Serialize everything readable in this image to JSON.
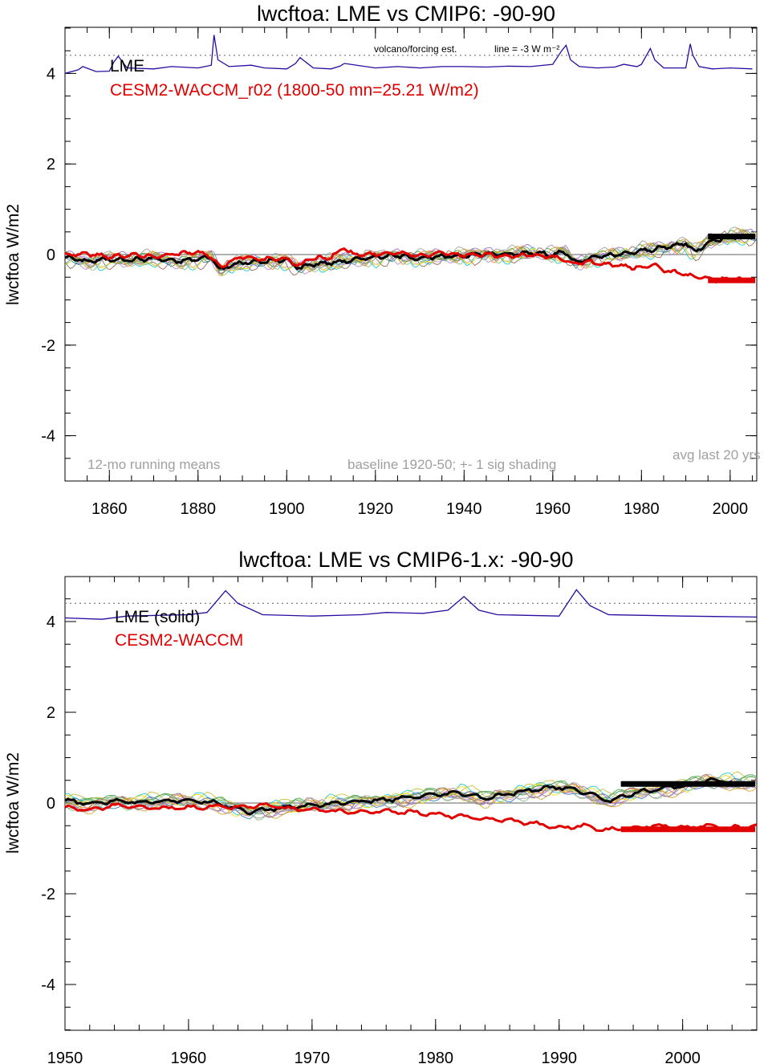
{
  "chart_data": [
    {
      "type": "line",
      "title": "lwcftoa: LME vs CMIP6: -90-90",
      "ylabel": "lwcftoa W/m2",
      "xlabel": "",
      "xlim": [
        1850,
        2006
      ],
      "ylim": [
        -5,
        5
      ],
      "x_ticks": [
        1860,
        1880,
        1900,
        1920,
        1940,
        1960,
        1980,
        2000
      ],
      "y_ticks": [
        4,
        2,
        0,
        -2,
        -4
      ],
      "y_tick_labels": [
        "4",
        "2",
        "0",
        "-2",
        "-4"
      ],
      "legend": [
        {
          "label": "LME",
          "color": "#000000"
        },
        {
          "label": "CESM2-WACCM_r02 (1800-50 mn=25.21 W/m2)",
          "color": "#e00000"
        }
      ],
      "annotations": {
        "volcano": "volcano/forcing est.",
        "volcano_line": "line = -3 W m⁻²",
        "running": "12-mo running means",
        "baseline": "baseline 1920-50; +- 1 sig shading",
        "avg": "avg last 20 yrs"
      },
      "reference_line_y": 4.4,
      "zero_line_y": 0,
      "volcano_series": {
        "name": "volcano/forcing est.",
        "color": "#2a0aa0",
        "x": [
          1850,
          1853,
          1854,
          1857,
          1860,
          1861,
          1862,
          1864,
          1870,
          1874,
          1880,
          1883,
          1883.6,
          1884.5,
          1887,
          1892,
          1895,
          1900,
          1902,
          1903,
          1906,
          1910,
          1912,
          1913,
          1920,
          1925,
          1930,
          1935,
          1940,
          1945,
          1950,
          1955,
          1960,
          1962,
          1963,
          1964,
          1966,
          1970,
          1974,
          1976,
          1979,
          1980,
          1982,
          1983,
          1985,
          1990,
          1991,
          1991.6,
          1993,
          1996,
          2000,
          2005
        ],
        "y": [
          4.0,
          4.08,
          4.15,
          4.04,
          4.05,
          4.25,
          4.38,
          4.12,
          4.1,
          4.15,
          4.12,
          4.18,
          4.85,
          4.3,
          4.15,
          4.18,
          4.12,
          4.1,
          4.22,
          4.35,
          4.12,
          4.1,
          4.16,
          4.22,
          4.12,
          4.15,
          4.12,
          4.15,
          4.15,
          4.14,
          4.16,
          4.15,
          4.2,
          4.5,
          4.62,
          4.3,
          4.15,
          4.12,
          4.14,
          4.2,
          4.15,
          4.2,
          4.55,
          4.3,
          4.12,
          4.12,
          4.65,
          4.4,
          4.15,
          4.1,
          4.12,
          4.1
        ]
      },
      "series": [
        {
          "name": "LME",
          "color": "#000000",
          "x": [
            1850,
            1855,
            1860,
            1865,
            1870,
            1875,
            1880,
            1883,
            1885,
            1887,
            1890,
            1895,
            1900,
            1903,
            1905,
            1910,
            1915,
            1920,
            1925,
            1930,
            1935,
            1940,
            1945,
            1950,
            1955,
            1960,
            1963,
            1965,
            1968,
            1970,
            1975,
            1980,
            1985,
            1990,
            1992,
            1995,
            2000,
            2005
          ],
          "y": [
            -0.05,
            -0.15,
            -0.1,
            -0.12,
            -0.08,
            -0.15,
            -0.1,
            -0.05,
            -0.35,
            -0.25,
            -0.18,
            -0.15,
            -0.12,
            -0.3,
            -0.22,
            -0.18,
            -0.12,
            -0.05,
            -0.02,
            -0.08,
            -0.05,
            -0.02,
            0.02,
            0.0,
            0.05,
            0.0,
            0.05,
            -0.18,
            -0.1,
            -0.05,
            0.0,
            0.08,
            0.15,
            0.25,
            0.05,
            0.28,
            0.4,
            0.4
          ]
        },
        {
          "name": "CESM2-WACCM_r02 (1800-50 mn=25.21 W/m2)",
          "color": "#e00000",
          "x": [
            1850,
            1855,
            1860,
            1865,
            1870,
            1875,
            1880,
            1883,
            1885,
            1887,
            1890,
            1895,
            1900,
            1903,
            1905,
            1910,
            1913,
            1915,
            1920,
            1925,
            1930,
            1935,
            1940,
            1945,
            1950,
            1955,
            1960,
            1963,
            1965,
            1968,
            1970,
            1975,
            1980,
            1983,
            1985,
            1988,
            1990,
            1993,
            1995,
            2000,
            2005
          ],
          "y": [
            0.0,
            0.02,
            -0.05,
            0.0,
            -0.05,
            0.02,
            0.05,
            -0.05,
            -0.3,
            -0.15,
            -0.05,
            -0.1,
            -0.1,
            -0.25,
            -0.1,
            -0.05,
            0.15,
            0.0,
            0.0,
            0.05,
            -0.02,
            0.05,
            -0.02,
            0.0,
            -0.05,
            0.0,
            -0.05,
            -0.15,
            -0.2,
            -0.15,
            -0.2,
            -0.25,
            -0.3,
            -0.2,
            -0.35,
            -0.4,
            -0.45,
            -0.5,
            -0.55,
            -0.55,
            -0.55
          ]
        }
      ],
      "avg_last_20": [
        {
          "name": "LME",
          "color": "#000000",
          "x": [
            1995,
            2006
          ],
          "y": 0.4
        },
        {
          "name": "CESM2-WACCM_r02",
          "color": "#e00000",
          "x": [
            1995,
            2006
          ],
          "y": -0.57
        }
      ]
    },
    {
      "type": "line",
      "title": "lwcftoa: LME vs CMIP6-1.x: -90-90",
      "ylabel": "lwcftoa W/m2",
      "xlabel": "",
      "xlim": [
        1950,
        2006
      ],
      "ylim": [
        -5,
        5
      ],
      "x_ticks": [
        1950,
        1960,
        1970,
        1980,
        1990,
        2000
      ],
      "y_ticks": [
        4,
        2,
        0,
        -2,
        -4
      ],
      "y_tick_labels": [
        "4",
        "2",
        "0",
        "-2",
        "-4"
      ],
      "legend": [
        {
          "label": "LME (solid)",
          "color": "#000000"
        },
        {
          "label": "CESM2-WACCM",
          "color": "#e00000"
        }
      ],
      "reference_line_y": 4.4,
      "zero_line_y": 0,
      "volcano_series": {
        "name": "volcano/forcing est.",
        "color": "#2a0aa0",
        "x": [
          1950,
          1953,
          1955,
          1960,
          1961.5,
          1963,
          1964,
          1966,
          1970,
          1974,
          1976,
          1979,
          1981,
          1982.3,
          1983.5,
          1985,
          1990,
          1991.4,
          1992.5,
          1994,
          2000,
          2006
        ],
        "y": [
          4.08,
          4.05,
          4.12,
          4.15,
          4.2,
          4.68,
          4.4,
          4.15,
          4.12,
          4.15,
          4.2,
          4.18,
          4.25,
          4.55,
          4.25,
          4.15,
          4.12,
          4.7,
          4.35,
          4.15,
          4.12,
          4.1
        ]
      },
      "series": [
        {
          "name": "LME (solid)",
          "color": "#000000",
          "x": [
            1950,
            1952,
            1954,
            1956,
            1958,
            1960,
            1962,
            1963,
            1965,
            1967,
            1970,
            1972,
            1975,
            1978,
            1980,
            1982,
            1984,
            1986,
            1988,
            1990,
            1992,
            1994,
            1996,
            1998,
            2000,
            2002,
            2004
          ],
          "y": [
            0.05,
            -0.02,
            0.05,
            0.02,
            0.05,
            0.05,
            0.03,
            -0.05,
            -0.2,
            -0.12,
            -0.05,
            0.0,
            0.05,
            0.12,
            0.18,
            0.22,
            0.1,
            0.2,
            0.3,
            0.35,
            0.25,
            0.05,
            0.22,
            0.3,
            0.38,
            0.5,
            0.45
          ]
        },
        {
          "name": "CESM2-WACCM",
          "color": "#e00000",
          "x": [
            1950,
            1952,
            1954,
            1956,
            1958,
            1960,
            1962,
            1964,
            1966,
            1968,
            1970,
            1972,
            1974,
            1976,
            1978,
            1980,
            1982,
            1984,
            1986,
            1988,
            1990,
            1992,
            1994,
            1995,
            1998,
            2000,
            2002,
            2004,
            2006
          ],
          "y": [
            -0.1,
            -0.15,
            -0.05,
            -0.1,
            -0.12,
            -0.1,
            -0.08,
            -0.1,
            -0.05,
            -0.12,
            -0.15,
            -0.18,
            -0.2,
            -0.18,
            -0.2,
            -0.25,
            -0.3,
            -0.35,
            -0.38,
            -0.45,
            -0.55,
            -0.5,
            -0.6,
            -0.55,
            -0.5,
            -0.55,
            -0.5,
            -0.55,
            -0.5
          ]
        }
      ],
      "avg_last_20": [
        {
          "name": "LME",
          "color": "#000000",
          "x": [
            1995,
            2006
          ],
          "y": 0.42
        },
        {
          "name": "CESM2-WACCM",
          "color": "#e00000",
          "x": [
            1995,
            2006
          ],
          "y": -0.58
        }
      ]
    }
  ]
}
